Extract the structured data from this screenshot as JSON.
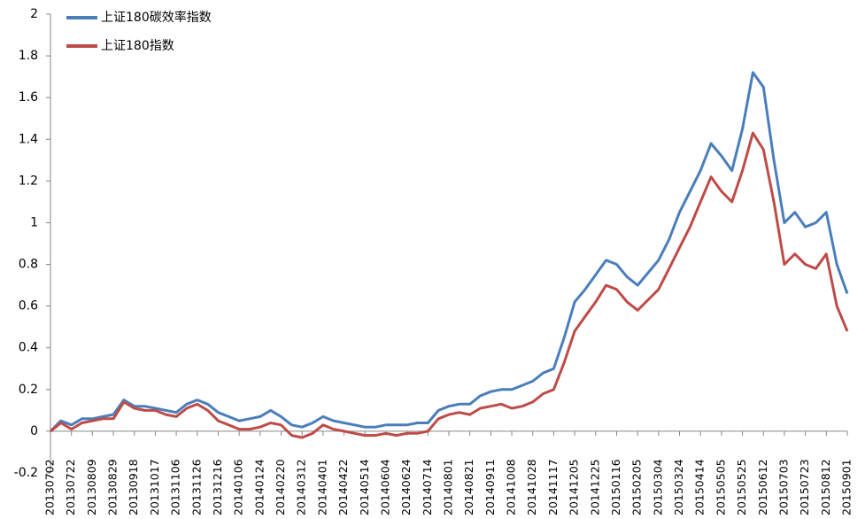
{
  "chart_data": {
    "type": "line",
    "categories": [
      "20130702",
      null,
      "20130722",
      null,
      "20130809",
      null,
      "20130829",
      null,
      "20130918",
      null,
      "20131017",
      null,
      "20131106",
      null,
      "20131126",
      null,
      "20131216",
      null,
      "20140106",
      null,
      "20140124",
      null,
      "20140220",
      null,
      "20140312",
      null,
      "20140401",
      null,
      "20140422",
      null,
      "20140514",
      null,
      "20140604",
      null,
      "20140624",
      null,
      "20140714",
      null,
      "20140801",
      null,
      "20140821",
      null,
      "20140911",
      null,
      "20141008",
      null,
      "20141028",
      null,
      "20141117",
      null,
      "20141205",
      null,
      "20141225",
      null,
      "20150116",
      null,
      "20150205",
      null,
      "20150304",
      null,
      "20150324",
      null,
      "20150414",
      null,
      "20150505",
      null,
      "20150525",
      null,
      "20150612",
      null,
      "20150703",
      null,
      "20150723",
      null,
      "20150812",
      null,
      "20150901"
    ],
    "series": [
      {
        "name": "上证180碳效率指数",
        "color": "#4a7ebb",
        "values": [
          0.0,
          0.05,
          0.03,
          0.06,
          0.06,
          0.07,
          0.08,
          0.15,
          0.12,
          0.12,
          0.11,
          0.1,
          0.09,
          0.13,
          0.15,
          0.13,
          0.09,
          0.07,
          0.05,
          0.06,
          0.07,
          0.1,
          0.07,
          0.03,
          0.02,
          0.04,
          0.07,
          0.05,
          0.04,
          0.03,
          0.02,
          0.02,
          0.03,
          0.03,
          0.03,
          0.04,
          0.04,
          0.1,
          0.12,
          0.13,
          0.13,
          0.17,
          0.19,
          0.2,
          0.2,
          0.22,
          0.24,
          0.28,
          0.3,
          0.45,
          0.62,
          0.68,
          0.75,
          0.82,
          0.8,
          0.74,
          0.7,
          0.76,
          0.82,
          0.92,
          1.05,
          1.15,
          1.25,
          1.38,
          1.32,
          1.25,
          1.45,
          1.72,
          1.65,
          1.3,
          1.0,
          1.05,
          0.98,
          1.0,
          1.05,
          0.8,
          0.66
        ]
      },
      {
        "name": "上证180指数",
        "color": "#be4b48",
        "values": [
          0.0,
          0.04,
          0.01,
          0.04,
          0.05,
          0.06,
          0.06,
          0.14,
          0.11,
          0.1,
          0.1,
          0.08,
          0.07,
          0.11,
          0.13,
          0.1,
          0.05,
          0.03,
          0.01,
          0.01,
          0.02,
          0.04,
          0.03,
          -0.02,
          -0.03,
          -0.01,
          0.03,
          0.01,
          0.0,
          -0.01,
          -0.02,
          -0.02,
          -0.01,
          -0.02,
          -0.01,
          -0.01,
          0.0,
          0.06,
          0.08,
          0.09,
          0.08,
          0.11,
          0.12,
          0.13,
          0.11,
          0.12,
          0.14,
          0.18,
          0.2,
          0.33,
          0.48,
          0.55,
          0.62,
          0.7,
          0.68,
          0.62,
          0.58,
          0.63,
          0.68,
          0.78,
          0.88,
          0.98,
          1.1,
          1.22,
          1.15,
          1.1,
          1.25,
          1.43,
          1.35,
          1.1,
          0.8,
          0.85,
          0.8,
          0.78,
          0.85,
          0.6,
          0.48
        ]
      }
    ],
    "ylim": [
      -0.2,
      2
    ],
    "yticks": [
      -0.2,
      0,
      0.2,
      0.4,
      0.6,
      0.8,
      1,
      1.2,
      1.4,
      1.6,
      1.8,
      2
    ],
    "grid": false,
    "legend": "top-left"
  }
}
